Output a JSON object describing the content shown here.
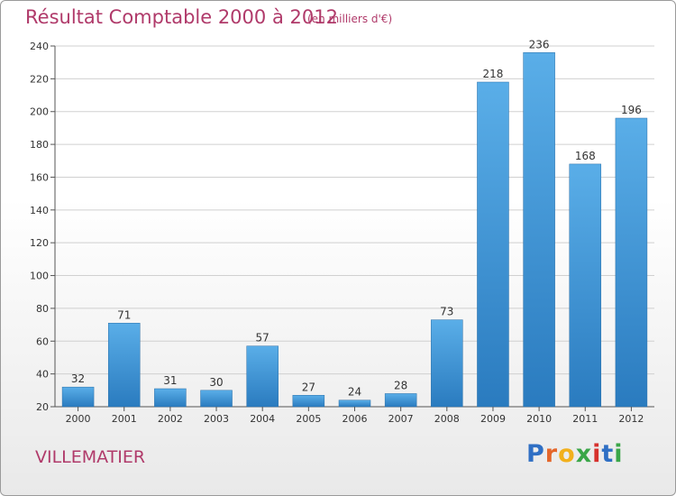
{
  "chart_data": {
    "type": "bar",
    "title": "Résultat Comptable 2000 à 2012",
    "subtitle": "(en milliers d'€)",
    "categories": [
      "2000",
      "2001",
      "2002",
      "2003",
      "2004",
      "2005",
      "2006",
      "2007",
      "2008",
      "2009",
      "2010",
      "2011",
      "2012"
    ],
    "values": [
      32,
      71,
      31,
      30,
      57,
      27,
      24,
      28,
      73,
      218,
      236,
      168,
      196
    ],
    "xlabel": "",
    "ylabel": "",
    "ylim": [
      20,
      240
    ],
    "yticks": [
      20,
      40,
      60,
      80,
      100,
      120,
      140,
      160,
      180,
      200,
      220,
      240
    ],
    "grid": true,
    "bar_color_top": "#5aaee8",
    "bar_color_bottom": "#2a7bbf",
    "title_color": "#b03a6a"
  },
  "footer": {
    "place": "VILLEMATIER",
    "logo_letters": [
      "P",
      "r",
      "o",
      "x",
      "i",
      "t",
      "i"
    ],
    "logo_colors": [
      "#2f6fc4",
      "#e4662a",
      "#f2b01c",
      "#3aa648",
      "#d6312d",
      "#2f6fc4",
      "#3aa648"
    ]
  }
}
